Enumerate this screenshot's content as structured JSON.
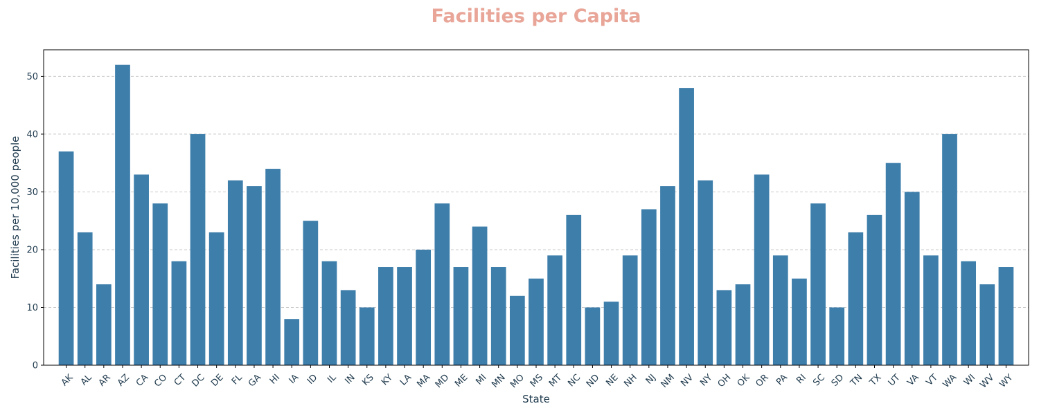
{
  "chart_data": {
    "type": "bar",
    "title": "Facilities per Capita",
    "xlabel": "State",
    "ylabel": "Facilities per 10,000 people",
    "categories": [
      "AK",
      "AL",
      "AR",
      "AZ",
      "CA",
      "CO",
      "CT",
      "DC",
      "DE",
      "FL",
      "GA",
      "HI",
      "IA",
      "ID",
      "IL",
      "IN",
      "KS",
      "KY",
      "LA",
      "MA",
      "MD",
      "ME",
      "MI",
      "MN",
      "MO",
      "MS",
      "MT",
      "NC",
      "ND",
      "NE",
      "NH",
      "NJ",
      "NM",
      "NV",
      "NY",
      "OH",
      "OK",
      "OR",
      "PA",
      "RI",
      "SC",
      "SD",
      "TN",
      "TX",
      "UT",
      "VA",
      "VT",
      "WA",
      "WI",
      "WV",
      "WY"
    ],
    "values": [
      37,
      23,
      14,
      52,
      33,
      28,
      18,
      40,
      23,
      32,
      31,
      34,
      8,
      25,
      18,
      13,
      10,
      17,
      17,
      20,
      28,
      17,
      24,
      17,
      12,
      15,
      19,
      26,
      10,
      11,
      19,
      27,
      31,
      48,
      32,
      13,
      14,
      33,
      19,
      15,
      28,
      10,
      23,
      26,
      35,
      30,
      19,
      40,
      18,
      14,
      17
    ],
    "ylim": [
      0,
      54.6
    ],
    "yticks": [
      0,
      10,
      20,
      30,
      40,
      50
    ],
    "grid": "y-dashed",
    "legend": "none",
    "colors": {
      "bar": "#3d7eab",
      "title": "#e8a598",
      "text": "#1f3a4d",
      "grid": "#c8c8c8",
      "axes": "#000000"
    }
  }
}
